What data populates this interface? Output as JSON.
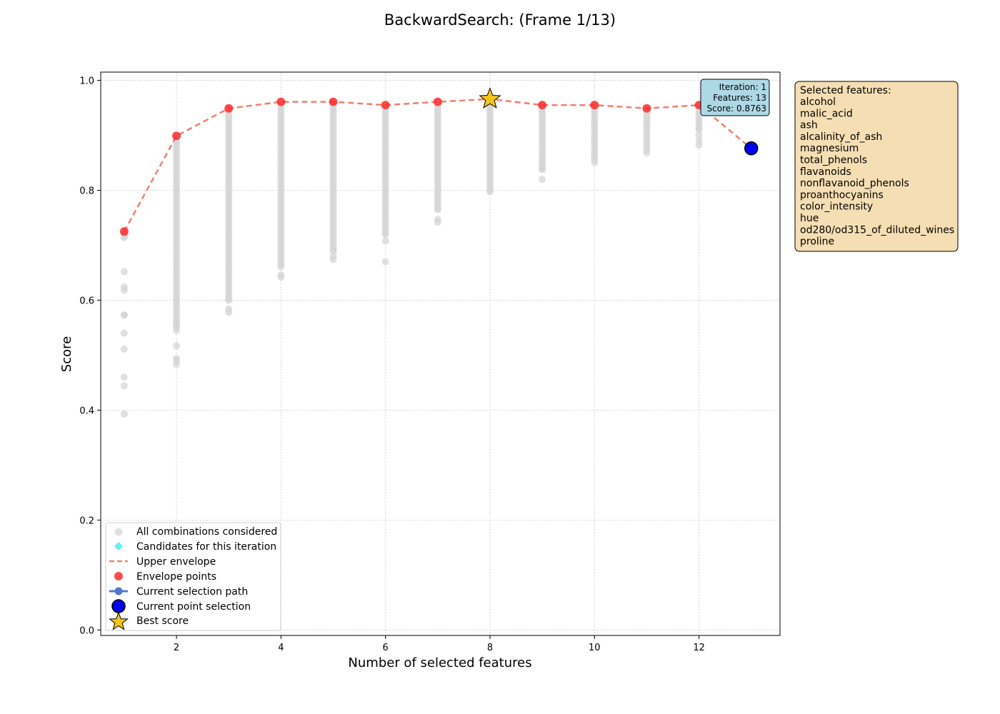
{
  "chart_data": {
    "type": "scatter",
    "title": "BackwardSearch: (Frame 1/13)",
    "xlabel": "Number of selected features",
    "ylabel": "Score",
    "xlim": [
      0.55,
      13.55
    ],
    "ylim": [
      -0.01,
      1.015
    ],
    "xticks": [
      2,
      4,
      6,
      8,
      10,
      12
    ],
    "yticks": [
      0.0,
      0.2,
      0.4,
      0.6,
      0.8,
      1.0
    ],
    "grid": true,
    "legend_position": "lower-left",
    "legend": [
      {
        "key": "all",
        "label": "All combinations considered"
      },
      {
        "key": "candidates",
        "label": "Candidates for this iteration"
      },
      {
        "key": "envelope_line",
        "label": "Upper envelope"
      },
      {
        "key": "envelope_points",
        "label": "Envelope points"
      },
      {
        "key": "path",
        "label": "Current selection path"
      },
      {
        "key": "current",
        "label": "Current point selection"
      },
      {
        "key": "best",
        "label": "Best score"
      }
    ],
    "envelope": {
      "x": [
        1,
        2,
        3,
        4,
        5,
        6,
        7,
        8,
        9,
        10,
        11,
        12,
        13
      ],
      "y": [
        0.725,
        0.899,
        0.949,
        0.961,
        0.961,
        0.955,
        0.961,
        0.966,
        0.955,
        0.955,
        0.949,
        0.955,
        0.8763
      ]
    },
    "best_point": {
      "x": 8,
      "y": 0.966
    },
    "current_point": {
      "x": 13,
      "y": 0.8763
    },
    "all_combinations": [
      {
        "x": 1,
        "min": 0.393,
        "max": 0.725,
        "outliers": [
          0.393,
          0.444,
          0.46,
          0.511,
          0.54,
          0.573,
          0.573,
          0.618,
          0.624,
          0.652,
          0.714
        ]
      },
      {
        "x": 2,
        "min": 0.483,
        "max": 0.899,
        "outliers": [
          0.483,
          0.49,
          0.494,
          0.517,
          0.545,
          0.551,
          0.556
        ]
      },
      {
        "x": 3,
        "min": 0.578,
        "max": 0.949,
        "outliers": [
          0.578,
          0.584,
          0.6
        ]
      },
      {
        "x": 4,
        "min": 0.642,
        "max": 0.961,
        "outliers": [
          0.642,
          0.646,
          0.661
        ]
      },
      {
        "x": 5,
        "min": 0.674,
        "max": 0.961,
        "outliers": [
          0.674,
          0.68,
          0.69
        ]
      },
      {
        "x": 6,
        "min": 0.67,
        "max": 0.955,
        "outliers": [
          0.67,
          0.708,
          0.72
        ]
      },
      {
        "x": 7,
        "min": 0.742,
        "max": 0.961,
        "outliers": [
          0.742,
          0.747,
          0.765
        ]
      },
      {
        "x": 8,
        "min": 0.798,
        "max": 0.966,
        "outliers": [
          0.798
        ]
      },
      {
        "x": 9,
        "min": 0.82,
        "max": 0.955,
        "outliers": [
          0.82,
          0.838
        ]
      },
      {
        "x": 10,
        "min": 0.848,
        "max": 0.955,
        "outliers": []
      },
      {
        "x": 11,
        "min": 0.865,
        "max": 0.949,
        "outliers": []
      },
      {
        "x": 12,
        "min": 0.882,
        "max": 0.955,
        "outliers": [
          0.882,
          0.89,
          0.9,
          0.91
        ]
      }
    ],
    "colors": {
      "all": "#d3d3d3",
      "candidates": "#66f0f0",
      "envelope": "#f08070",
      "envelope_points": "#ff2222",
      "path": "#5577cc",
      "current": "#0000ee",
      "best": "#f5c518",
      "info_box": "#add8e6",
      "features_box": "#f5deb3"
    }
  },
  "info_box": {
    "iteration": "Iteration: 1",
    "features": "Features: 13",
    "score": "Score: 0.8763"
  },
  "features_box": {
    "heading": "Selected features:",
    "items": [
      "alcohol",
      "malic_acid",
      "ash",
      "alcalinity_of_ash",
      "magnesium",
      "total_phenols",
      "flavanoids",
      "nonflavanoid_phenols",
      "proanthocyanins",
      "color_intensity",
      "hue",
      "od280/od315_of_diluted_wines",
      "proline"
    ]
  }
}
